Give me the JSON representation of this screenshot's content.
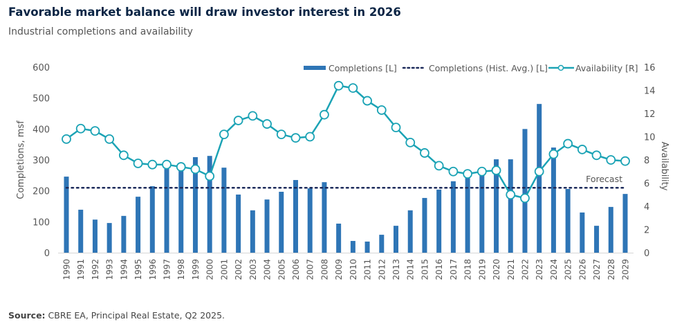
{
  "title": "Favorable market balance will draw investor interest in 2026",
  "subtitle": "Industrial completions and availability",
  "source_label": "Source:",
  "source_text": "CBRE EA, Principal Real Estate, Q2 2025.",
  "colors": {
    "bars": "#2e75b6",
    "avg_line": "#1c2a5a",
    "availability": "#1ba3b5"
  },
  "chart_data": {
    "type": "bar+line",
    "categories": [
      "1990",
      "1991",
      "1992",
      "1993",
      "1994",
      "1995",
      "1996",
      "1997",
      "1998",
      "1999",
      "2000",
      "2001",
      "2002",
      "2003",
      "2004",
      "2005",
      "2006",
      "2007",
      "2008",
      "2009",
      "2010",
      "2011",
      "2012",
      "2013",
      "2014",
      "2015",
      "2016",
      "2017",
      "2018",
      "2019",
      "2020",
      "2021",
      "2022",
      "2023",
      "2024",
      "2025",
      "2026",
      "2027",
      "2028",
      "2029"
    ],
    "series": [
      {
        "name": "Completions [L]",
        "type": "bar",
        "axis": "left",
        "values": [
          246,
          139,
          107,
          96,
          119,
          181,
          215,
          271,
          273,
          309,
          313,
          275,
          188,
          137,
          172,
          197,
          235,
          208,
          228,
          94,
          38,
          36,
          58,
          87,
          137,
          177,
          204,
          231,
          245,
          257,
          302,
          302,
          400,
          481,
          340,
          206,
          130,
          87,
          148,
          190
        ]
      },
      {
        "name": "Completions (Hist. Avg.) [L]",
        "type": "dotted-line",
        "axis": "left",
        "value": 210
      },
      {
        "name": "Availability [R]",
        "type": "line",
        "axis": "right",
        "values": [
          9.8,
          10.7,
          10.5,
          9.8,
          8.4,
          7.7,
          7.6,
          7.6,
          7.4,
          7.2,
          6.6,
          10.2,
          11.4,
          11.8,
          11.1,
          10.2,
          9.9,
          10.0,
          11.9,
          14.4,
          14.2,
          13.1,
          12.3,
          10.8,
          9.5,
          8.6,
          7.5,
          7.0,
          6.8,
          7.0,
          7.1,
          5.0,
          4.7,
          7.0,
          8.5,
          9.4,
          8.9,
          8.4,
          8.0,
          7.9
        ]
      }
    ],
    "ylabel": "Completions, msf",
    "y2label": "Availability",
    "ylim": [
      0,
      600
    ],
    "y2lim": [
      0,
      16
    ],
    "yticks": [
      "0",
      "100",
      "200",
      "300",
      "400",
      "500",
      "600"
    ],
    "y2ticks": [
      "0",
      "2",
      "4",
      "6",
      "8",
      "10",
      "12",
      "14",
      "16"
    ],
    "annotation": "Forecast",
    "legend_position": "top-right",
    "grid": false
  }
}
